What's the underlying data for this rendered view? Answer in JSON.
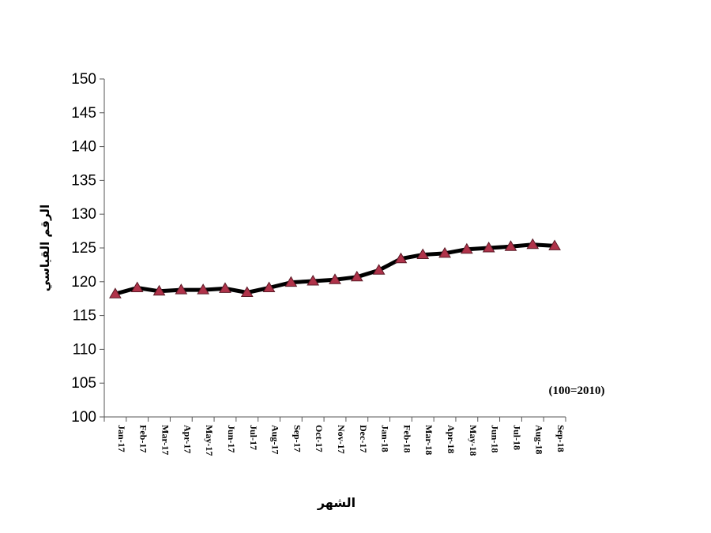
{
  "chart_data": {
    "type": "line",
    "ylabel": "الرقم القياسي",
    "xlabel": "الشهر",
    "note": "(100=2010)",
    "ylim": [
      100,
      150
    ],
    "yticks": [
      100,
      105,
      110,
      115,
      120,
      125,
      130,
      135,
      140,
      145,
      150
    ],
    "categories": [
      "Jan-17",
      "Feb-17",
      "Mar-17",
      "Apr-17",
      "May-17",
      "Jun-17",
      "Jul-17",
      "Aug-17",
      "Sep-17",
      "Oct-17",
      "Nov-17",
      "Dec-17",
      "Jan-18",
      "Feb-18",
      "Mar-18",
      "Apr-18",
      "May-18",
      "Jun-18",
      "Jul-18",
      "Aug-18",
      "Sep-18"
    ],
    "values": [
      118.2,
      119.1,
      118.6,
      118.8,
      118.8,
      119.0,
      118.4,
      119.1,
      119.9,
      120.1,
      120.3,
      120.7,
      121.7,
      123.4,
      124.0,
      124.2,
      124.8,
      125.0,
      125.2,
      125.5,
      125.3
    ],
    "grid": false,
    "colors": {
      "line": "#000000",
      "marker": "#b0334a",
      "marker_edge": "#5a1a26"
    }
  }
}
